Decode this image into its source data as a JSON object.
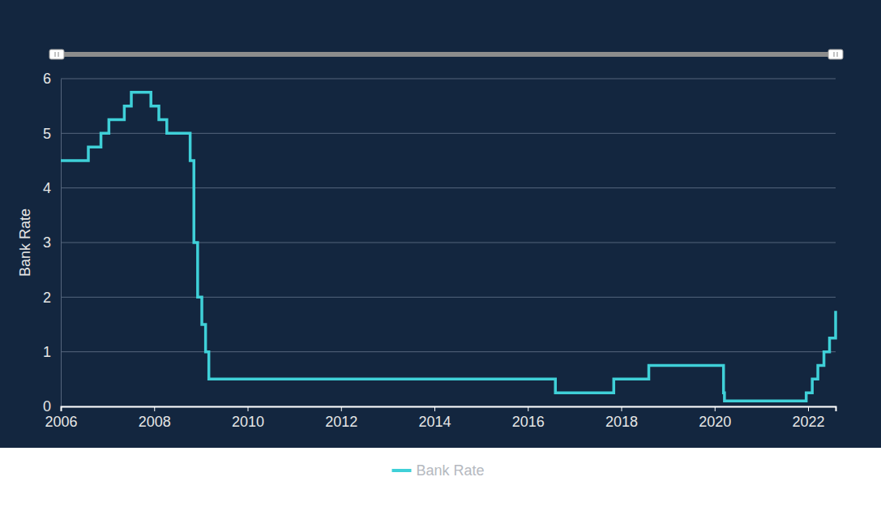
{
  "chart_data": {
    "type": "line",
    "y_label": "Bank Rate",
    "x": [
      2006.0,
      2006.59,
      2006.86,
      2007.03,
      2007.36,
      2007.51,
      2007.93,
      2008.1,
      2008.27,
      2008.77,
      2008.85,
      2008.93,
      2009.02,
      2009.1,
      2009.17,
      2016.59,
      2017.84,
      2018.59,
      2020.19,
      2020.21,
      2021.96,
      2022.09,
      2022.21,
      2022.34,
      2022.46,
      2022.59
    ],
    "series": [
      {
        "name": "Bank Rate",
        "color": "#3fd0d8",
        "line_style": "step",
        "values": [
          4.5,
          4.75,
          5.0,
          5.25,
          5.5,
          5.75,
          5.5,
          5.25,
          5.0,
          4.5,
          3.0,
          2.0,
          1.5,
          1.0,
          0.5,
          0.25,
          0.5,
          0.75,
          0.25,
          0.1,
          0.25,
          0.5,
          0.75,
          1.0,
          1.25,
          1.75
        ]
      }
    ],
    "xlim": [
      2006.0,
      2022.59
    ],
    "xticks": [
      2006,
      2008,
      2010,
      2012,
      2014,
      2016,
      2018,
      2020,
      2022
    ],
    "ylim": [
      0,
      6
    ],
    "yticks": [
      0,
      1,
      2,
      3,
      4,
      5,
      6
    ],
    "grid": true,
    "legend": "bottom"
  }
}
